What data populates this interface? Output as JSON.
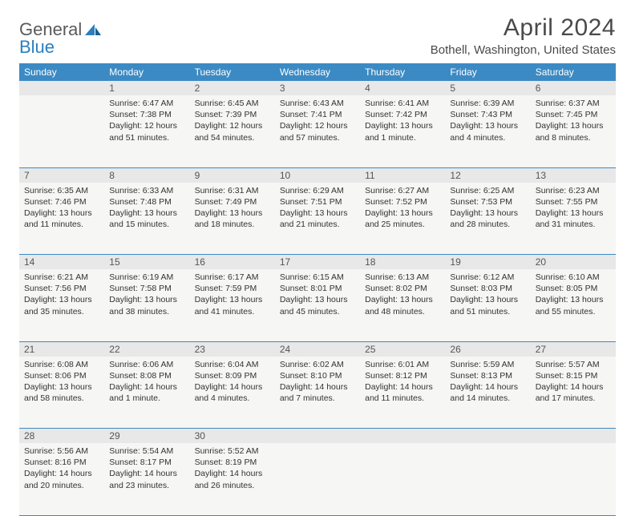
{
  "logo": {
    "text_general": "General",
    "text_blue": "Blue"
  },
  "title": "April 2024",
  "location": "Bothell, Washington, United States",
  "colors": {
    "header_bg": "#3b8ac4",
    "header_fg": "#ffffff",
    "daynum_bg": "#e8e8e8",
    "cell_bg": "#f6f6f4",
    "border": "#3b8ac4",
    "text": "#333333"
  },
  "day_headers": [
    "Sunday",
    "Monday",
    "Tuesday",
    "Wednesday",
    "Thursday",
    "Friday",
    "Saturday"
  ],
  "weeks": [
    {
      "nums": [
        "",
        "1",
        "2",
        "3",
        "4",
        "5",
        "6"
      ],
      "cells": [
        null,
        {
          "sunrise": "Sunrise: 6:47 AM",
          "sunset": "Sunset: 7:38 PM",
          "day1": "Daylight: 12 hours",
          "day2": "and 51 minutes."
        },
        {
          "sunrise": "Sunrise: 6:45 AM",
          "sunset": "Sunset: 7:39 PM",
          "day1": "Daylight: 12 hours",
          "day2": "and 54 minutes."
        },
        {
          "sunrise": "Sunrise: 6:43 AM",
          "sunset": "Sunset: 7:41 PM",
          "day1": "Daylight: 12 hours",
          "day2": "and 57 minutes."
        },
        {
          "sunrise": "Sunrise: 6:41 AM",
          "sunset": "Sunset: 7:42 PM",
          "day1": "Daylight: 13 hours",
          "day2": "and 1 minute."
        },
        {
          "sunrise": "Sunrise: 6:39 AM",
          "sunset": "Sunset: 7:43 PM",
          "day1": "Daylight: 13 hours",
          "day2": "and 4 minutes."
        },
        {
          "sunrise": "Sunrise: 6:37 AM",
          "sunset": "Sunset: 7:45 PM",
          "day1": "Daylight: 13 hours",
          "day2": "and 8 minutes."
        }
      ]
    },
    {
      "nums": [
        "7",
        "8",
        "9",
        "10",
        "11",
        "12",
        "13"
      ],
      "cells": [
        {
          "sunrise": "Sunrise: 6:35 AM",
          "sunset": "Sunset: 7:46 PM",
          "day1": "Daylight: 13 hours",
          "day2": "and 11 minutes."
        },
        {
          "sunrise": "Sunrise: 6:33 AM",
          "sunset": "Sunset: 7:48 PM",
          "day1": "Daylight: 13 hours",
          "day2": "and 15 minutes."
        },
        {
          "sunrise": "Sunrise: 6:31 AM",
          "sunset": "Sunset: 7:49 PM",
          "day1": "Daylight: 13 hours",
          "day2": "and 18 minutes."
        },
        {
          "sunrise": "Sunrise: 6:29 AM",
          "sunset": "Sunset: 7:51 PM",
          "day1": "Daylight: 13 hours",
          "day2": "and 21 minutes."
        },
        {
          "sunrise": "Sunrise: 6:27 AM",
          "sunset": "Sunset: 7:52 PM",
          "day1": "Daylight: 13 hours",
          "day2": "and 25 minutes."
        },
        {
          "sunrise": "Sunrise: 6:25 AM",
          "sunset": "Sunset: 7:53 PM",
          "day1": "Daylight: 13 hours",
          "day2": "and 28 minutes."
        },
        {
          "sunrise": "Sunrise: 6:23 AM",
          "sunset": "Sunset: 7:55 PM",
          "day1": "Daylight: 13 hours",
          "day2": "and 31 minutes."
        }
      ]
    },
    {
      "nums": [
        "14",
        "15",
        "16",
        "17",
        "18",
        "19",
        "20"
      ],
      "cells": [
        {
          "sunrise": "Sunrise: 6:21 AM",
          "sunset": "Sunset: 7:56 PM",
          "day1": "Daylight: 13 hours",
          "day2": "and 35 minutes."
        },
        {
          "sunrise": "Sunrise: 6:19 AM",
          "sunset": "Sunset: 7:58 PM",
          "day1": "Daylight: 13 hours",
          "day2": "and 38 minutes."
        },
        {
          "sunrise": "Sunrise: 6:17 AM",
          "sunset": "Sunset: 7:59 PM",
          "day1": "Daylight: 13 hours",
          "day2": "and 41 minutes."
        },
        {
          "sunrise": "Sunrise: 6:15 AM",
          "sunset": "Sunset: 8:01 PM",
          "day1": "Daylight: 13 hours",
          "day2": "and 45 minutes."
        },
        {
          "sunrise": "Sunrise: 6:13 AM",
          "sunset": "Sunset: 8:02 PM",
          "day1": "Daylight: 13 hours",
          "day2": "and 48 minutes."
        },
        {
          "sunrise": "Sunrise: 6:12 AM",
          "sunset": "Sunset: 8:03 PM",
          "day1": "Daylight: 13 hours",
          "day2": "and 51 minutes."
        },
        {
          "sunrise": "Sunrise: 6:10 AM",
          "sunset": "Sunset: 8:05 PM",
          "day1": "Daylight: 13 hours",
          "day2": "and 55 minutes."
        }
      ]
    },
    {
      "nums": [
        "21",
        "22",
        "23",
        "24",
        "25",
        "26",
        "27"
      ],
      "cells": [
        {
          "sunrise": "Sunrise: 6:08 AM",
          "sunset": "Sunset: 8:06 PM",
          "day1": "Daylight: 13 hours",
          "day2": "and 58 minutes."
        },
        {
          "sunrise": "Sunrise: 6:06 AM",
          "sunset": "Sunset: 8:08 PM",
          "day1": "Daylight: 14 hours",
          "day2": "and 1 minute."
        },
        {
          "sunrise": "Sunrise: 6:04 AM",
          "sunset": "Sunset: 8:09 PM",
          "day1": "Daylight: 14 hours",
          "day2": "and 4 minutes."
        },
        {
          "sunrise": "Sunrise: 6:02 AM",
          "sunset": "Sunset: 8:10 PM",
          "day1": "Daylight: 14 hours",
          "day2": "and 7 minutes."
        },
        {
          "sunrise": "Sunrise: 6:01 AM",
          "sunset": "Sunset: 8:12 PM",
          "day1": "Daylight: 14 hours",
          "day2": "and 11 minutes."
        },
        {
          "sunrise": "Sunrise: 5:59 AM",
          "sunset": "Sunset: 8:13 PM",
          "day1": "Daylight: 14 hours",
          "day2": "and 14 minutes."
        },
        {
          "sunrise": "Sunrise: 5:57 AM",
          "sunset": "Sunset: 8:15 PM",
          "day1": "Daylight: 14 hours",
          "day2": "and 17 minutes."
        }
      ]
    },
    {
      "nums": [
        "28",
        "29",
        "30",
        "",
        "",
        "",
        ""
      ],
      "cells": [
        {
          "sunrise": "Sunrise: 5:56 AM",
          "sunset": "Sunset: 8:16 PM",
          "day1": "Daylight: 14 hours",
          "day2": "and 20 minutes."
        },
        {
          "sunrise": "Sunrise: 5:54 AM",
          "sunset": "Sunset: 8:17 PM",
          "day1": "Daylight: 14 hours",
          "day2": "and 23 minutes."
        },
        {
          "sunrise": "Sunrise: 5:52 AM",
          "sunset": "Sunset: 8:19 PM",
          "day1": "Daylight: 14 hours",
          "day2": "and 26 minutes."
        },
        null,
        null,
        null,
        null
      ]
    }
  ]
}
